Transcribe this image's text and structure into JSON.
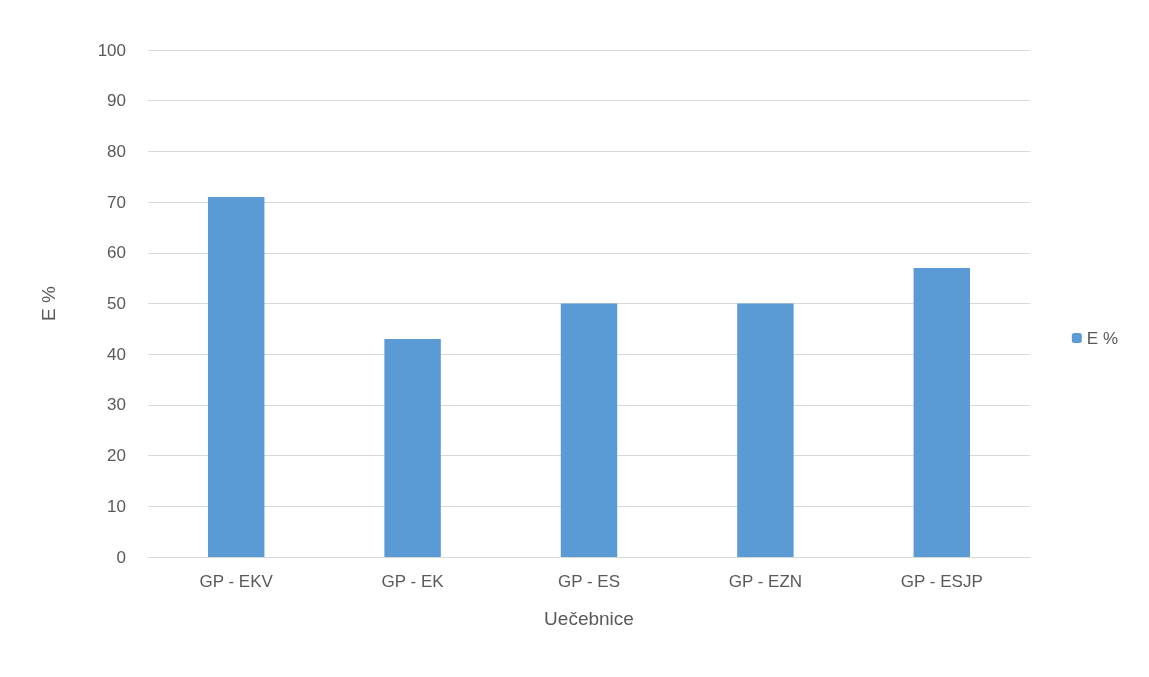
{
  "chart_data": {
    "type": "bar",
    "xlabel": "Uečebnice",
    "ylabel": "E %",
    "categories": [
      "GP - EKV",
      "GP - EK",
      "GP - ES",
      "GP - EZN",
      "GP - ESJP"
    ],
    "series": [
      {
        "name": "E %",
        "color": "#5b9bd5",
        "values": [
          71,
          43,
          50,
          50,
          57
        ]
      }
    ],
    "ylim": [
      0,
      100
    ],
    "yticks": [
      0,
      10,
      20,
      30,
      40,
      50,
      60,
      70,
      80,
      90,
      100
    ],
    "grid": "y",
    "legend": "right"
  }
}
